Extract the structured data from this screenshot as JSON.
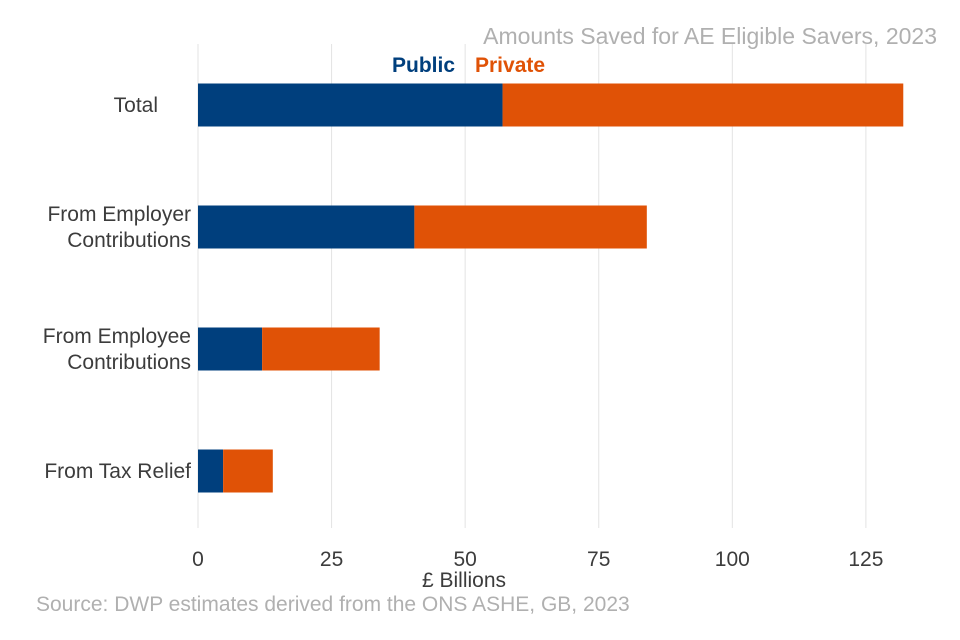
{
  "chart_data": {
    "type": "bar",
    "orientation": "horizontal",
    "stacked": true,
    "title": "Amounts Saved for AE Eligible Savers, 2023",
    "xlabel": "£ Billions",
    "ylabel": "",
    "source": "Source: DWP estimates derived from the ONS ASHE, GB, 2023",
    "categories": [
      "Total",
      "From Employer Contributions",
      "From Employee Contributions",
      "From Tax Relief"
    ],
    "category_lines": [
      [
        "Total"
      ],
      [
        "From Employer",
        "Contributions"
      ],
      [
        "From Employee",
        "Contributions"
      ],
      [
        "From Tax Relief"
      ]
    ],
    "series": [
      {
        "name": "Public",
        "color": "#003f7d",
        "values": [
          57,
          40.5,
          12,
          4.7
        ]
      },
      {
        "name": "Private",
        "color": "#e05206",
        "values": [
          75,
          43.5,
          22,
          9.3
        ]
      }
    ],
    "xlim": [
      0,
      135
    ],
    "xticks": [
      0,
      25,
      50,
      75,
      100,
      125
    ],
    "grid": true,
    "legend_position": "top"
  }
}
